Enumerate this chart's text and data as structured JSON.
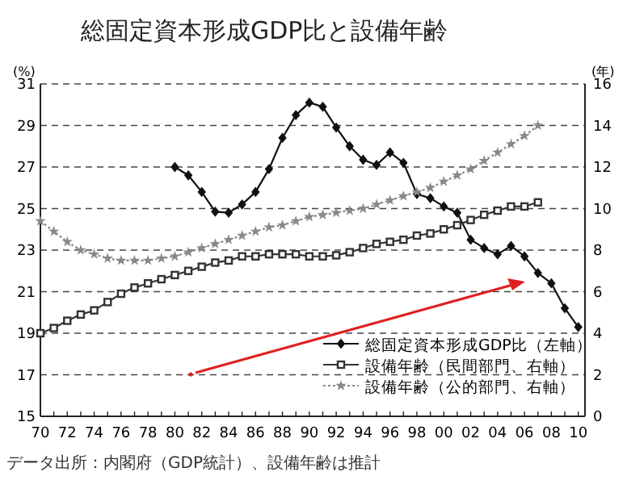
{
  "chart_data": {
    "type": "line",
    "title": "総固定資本形成GDP比と設備年齢",
    "ylabel": "(%)",
    "y2label": "(年)",
    "annotations": [
      "データ出所：内閣府（GDP統計）、設備年齢は推計"
    ],
    "x": [
      1970,
      1971,
      1972,
      1973,
      1974,
      1975,
      1976,
      1977,
      1978,
      1979,
      1980,
      1981,
      1982,
      1983,
      1984,
      1985,
      1986,
      1987,
      1988,
      1989,
      1990,
      1991,
      1992,
      1993,
      1994,
      1995,
      1996,
      1997,
      1998,
      1999,
      2000,
      2001,
      2002,
      2003,
      2004,
      2005,
      2006,
      2007,
      2008,
      2009,
      2010
    ],
    "xlim": [
      1970,
      2010.5
    ],
    "xticks": [
      {
        "value": 1970,
        "label": "70"
      },
      {
        "value": 1972,
        "label": "72"
      },
      {
        "value": 1974,
        "label": "74"
      },
      {
        "value": 1976,
        "label": "76"
      },
      {
        "value": 1978,
        "label": "78"
      },
      {
        "value": 1980,
        "label": "80"
      },
      {
        "value": 1982,
        "label": "82"
      },
      {
        "value": 1984,
        "label": "84"
      },
      {
        "value": 1986,
        "label": "86"
      },
      {
        "value": 1988,
        "label": "88"
      },
      {
        "value": 1990,
        "label": "90"
      },
      {
        "value": 1992,
        "label": "92"
      },
      {
        "value": 1994,
        "label": "94"
      },
      {
        "value": 1996,
        "label": "96"
      },
      {
        "value": 1998,
        "label": "98"
      },
      {
        "value": 2000,
        "label": "00"
      },
      {
        "value": 2002,
        "label": "02"
      },
      {
        "value": 2004,
        "label": "04"
      },
      {
        "value": 2006,
        "label": "06"
      },
      {
        "value": 2008,
        "label": "08"
      },
      {
        "value": 2010,
        "label": "10"
      }
    ],
    "ylim": [
      15,
      31
    ],
    "yticks": [
      15,
      17,
      19,
      21,
      23,
      25,
      27,
      29,
      31
    ],
    "y2lim": [
      0,
      16
    ],
    "y2ticks": [
      0,
      2,
      4,
      6,
      8,
      10,
      12,
      14,
      16
    ],
    "grid": "y",
    "legend": "bottom right",
    "series": [
      {
        "name": "総固定資本形成GDP比（左軸）",
        "color": "#111111",
        "marker": "diamond",
        "line_style": "solid",
        "values": [
          null,
          null,
          null,
          null,
          null,
          null,
          null,
          null,
          null,
          null,
          27.0,
          26.6,
          25.8,
          24.85,
          24.8,
          25.2,
          25.8,
          26.9,
          28.4,
          29.5,
          30.1,
          29.9,
          28.9,
          28.0,
          27.35,
          27.1,
          27.7,
          27.2,
          25.7,
          25.5,
          25.1,
          24.8,
          23.5,
          23.1,
          22.8,
          23.2,
          22.7,
          21.9,
          21.4,
          20.2,
          19.3
        ]
      },
      {
        "name": "設備年齢（民間部門、右軸）",
        "color": "#333333",
        "marker": "square",
        "line_style": "solid",
        "axis": "y2",
        "values": [
          4.0,
          4.25,
          4.6,
          4.9,
          5.1,
          5.5,
          5.9,
          6.2,
          6.4,
          6.6,
          6.8,
          7.0,
          7.2,
          7.4,
          7.5,
          7.7,
          7.7,
          7.8,
          7.8,
          7.8,
          7.7,
          7.7,
          7.75,
          7.9,
          8.1,
          8.3,
          8.4,
          8.5,
          8.7,
          8.8,
          9.0,
          9.2,
          9.45,
          9.7,
          9.9,
          10.1,
          10.1,
          10.3,
          null,
          null,
          null
        ]
      },
      {
        "name": "設備年齢（公的部門、右軸）",
        "color": "#888888",
        "marker": "star",
        "line_style": "dotted",
        "axis": "y2",
        "values": [
          9.4,
          8.9,
          8.4,
          8.0,
          7.8,
          7.6,
          7.5,
          7.5,
          7.5,
          7.6,
          7.7,
          7.9,
          8.1,
          8.3,
          8.5,
          8.7,
          8.9,
          9.1,
          9.2,
          9.4,
          9.6,
          9.7,
          9.8,
          9.9,
          10.0,
          10.2,
          10.4,
          10.6,
          10.8,
          11.0,
          11.3,
          11.6,
          11.9,
          12.3,
          12.7,
          13.1,
          13.5,
          14.0,
          null,
          null,
          null
        ]
      }
    ]
  }
}
